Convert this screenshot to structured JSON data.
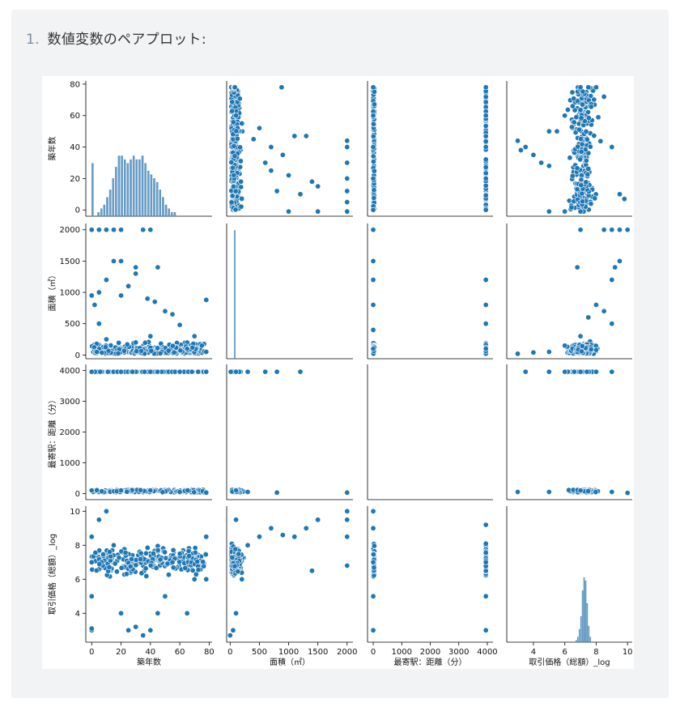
{
  "heading": {
    "number": "1.",
    "text": "数値変数のペアプロット:"
  },
  "chart_data": {
    "type": "scatter",
    "grid": false,
    "variables": [
      "築年数",
      "面積（㎡）",
      "最寄駅：距離（分）",
      "取引価格（総額）_log"
    ],
    "axis_labels": [
      "築年数",
      "面積（㎡）",
      "最寄駅：距離（分）",
      "取引価格（総額）_log"
    ],
    "ranges": [
      [
        -4,
        82
      ],
      [
        -60,
        2100
      ],
      [
        -200,
        4200
      ],
      [
        2.3,
        10.3
      ]
    ],
    "ticks": [
      [
        0,
        20,
        40,
        60,
        80
      ],
      [
        0,
        500,
        1000,
        1500,
        2000
      ],
      [
        0,
        1000,
        2000,
        3000,
        4000
      ],
      [
        4,
        6,
        8,
        10
      ]
    ],
    "tick_labels": [
      [
        "0",
        "20",
        "40",
        "60",
        "80"
      ],
      [
        "0",
        "500",
        "1000",
        "1500",
        "2000"
      ],
      [
        "0",
        "1000",
        "2000",
        "3000",
        "4000"
      ],
      [
        "4",
        "6",
        "8",
        "10"
      ]
    ],
    "color": "#1f77b4",
    "histograms": {
      "築年数": {
        "bins_x": [
          0,
          2,
          4,
          6,
          8,
          10,
          12,
          14,
          16,
          18,
          20,
          22,
          24,
          26,
          28,
          30,
          32,
          34,
          36,
          38,
          40,
          42,
          44,
          46,
          48,
          50,
          52,
          54,
          56
        ],
        "counts": [
          14,
          0,
          1,
          2,
          3,
          5,
          7,
          10,
          13,
          16,
          16,
          15,
          14,
          15,
          16,
          15,
          15,
          16,
          14,
          12,
          11,
          10,
          9,
          7,
          5,
          3,
          2,
          1,
          1
        ]
      },
      "面積（㎡）": {
        "bins_x": [
          70,
          90
        ],
        "counts": [
          2000,
          0
        ]
      },
      "取引価格（総額）_log": {
        "bins_x": [
          6.7,
          6.8,
          6.9,
          7.0,
          7.1,
          7.2,
          7.3,
          7.4,
          7.5,
          7.6
        ],
        "counts": [
          3,
          8,
          20,
          40,
          80,
          100,
          95,
          60,
          25,
          8
        ]
      }
    },
    "scatter_points": {
      "築年数_vs_面積": [
        [
          0,
          2000
        ],
        [
          5,
          2000
        ],
        [
          10,
          2000
        ],
        [
          15,
          2000
        ],
        [
          20,
          2000
        ],
        [
          35,
          2000
        ],
        [
          40,
          2000
        ],
        [
          20,
          1500
        ],
        [
          15,
          1500
        ],
        [
          30,
          1400
        ],
        [
          45,
          1400
        ],
        [
          30,
          1300
        ],
        [
          10,
          1200
        ],
        [
          5,
          1000
        ],
        [
          25,
          1100
        ],
        [
          20,
          950
        ],
        [
          38,
          900
        ],
        [
          43,
          850
        ],
        [
          78,
          880
        ],
        [
          50,
          700
        ],
        [
          55,
          650
        ],
        [
          60,
          480
        ],
        [
          70,
          300
        ],
        [
          75,
          150
        ],
        [
          78,
          50
        ],
        [
          40,
          300
        ],
        [
          30,
          200
        ],
        [
          10,
          250
        ],
        [
          65,
          100
        ],
        [
          5,
          500
        ],
        [
          2,
          800
        ],
        [
          0,
          950
        ]
      ],
      "面積_vs_築年数": [
        [
          20,
          78
        ],
        [
          60,
          78
        ],
        [
          70,
          78
        ],
        [
          80,
          78
        ],
        [
          880,
          78
        ],
        [
          100,
          60
        ],
        [
          200,
          55
        ],
        [
          400,
          45
        ],
        [
          500,
          52
        ],
        [
          700,
          40
        ],
        [
          900,
          35
        ],
        [
          1100,
          47
        ],
        [
          1300,
          47
        ],
        [
          1400,
          18
        ],
        [
          1500,
          15
        ],
        [
          1200,
          10
        ],
        [
          1000,
          22
        ],
        [
          800,
          12
        ],
        [
          2000,
          44
        ],
        [
          2000,
          40
        ],
        [
          2000,
          30
        ],
        [
          2000,
          20
        ],
        [
          2000,
          12
        ],
        [
          2000,
          5
        ],
        [
          2000,
          -1
        ],
        [
          1000,
          -1
        ],
        [
          1500,
          -1
        ],
        [
          700,
          25
        ],
        [
          600,
          30
        ]
      ],
      "距離_vs_築年数": [
        [
          0,
          78
        ],
        [
          0,
          60
        ],
        [
          0,
          40
        ],
        [
          0,
          20
        ],
        [
          0,
          0
        ],
        [
          3950,
          78
        ],
        [
          3950,
          60
        ],
        [
          3950,
          40
        ],
        [
          3950,
          20
        ],
        [
          3950,
          0
        ]
      ],
      "価格_vs_築年数": [
        [
          3,
          44
        ],
        [
          3.2,
          38
        ],
        [
          3.5,
          40
        ],
        [
          4,
          35
        ],
        [
          4.5,
          30
        ],
        [
          5,
          28
        ],
        [
          5,
          50
        ],
        [
          5.5,
          50
        ],
        [
          6,
          60
        ],
        [
          6.5,
          66
        ],
        [
          7,
          78
        ],
        [
          7.5,
          78
        ],
        [
          8,
          78
        ],
        [
          8.5,
          72
        ],
        [
          9,
          40
        ],
        [
          9.5,
          10
        ],
        [
          9.8,
          7
        ],
        [
          7.2,
          -1
        ],
        [
          5,
          -1
        ],
        [
          6,
          -1
        ],
        [
          7,
          -1
        ]
      ],
      "距離_vs_面積": [
        [
          0,
          2000
        ],
        [
          0,
          1500
        ],
        [
          0,
          1200
        ],
        [
          0,
          800
        ],
        [
          0,
          400
        ],
        [
          0,
          100
        ],
        [
          3950,
          1200
        ],
        [
          3950,
          800
        ],
        [
          3950,
          500
        ],
        [
          3950,
          100
        ]
      ],
      "価格_vs_面積": [
        [
          7,
          2000
        ],
        [
          8.5,
          2000
        ],
        [
          9,
          2000
        ],
        [
          9.5,
          2000
        ],
        [
          10,
          2000
        ],
        [
          9.5,
          1500
        ],
        [
          9.2,
          1400
        ],
        [
          6.8,
          1400
        ],
        [
          9,
          1200
        ],
        [
          8,
          800
        ],
        [
          7.5,
          600
        ],
        [
          8.5,
          700
        ],
        [
          9,
          500
        ],
        [
          7,
          300
        ],
        [
          6,
          150
        ],
        [
          5,
          50
        ],
        [
          3,
          20
        ],
        [
          4,
          40
        ]
      ],
      "築年数_vs_距離": [
        [
          0,
          3960
        ],
        [
          20,
          3960
        ],
        [
          40,
          3960
        ],
        [
          60,
          3960
        ],
        [
          78,
          3960
        ],
        [
          0,
          100
        ],
        [
          20,
          100
        ],
        [
          40,
          100
        ],
        [
          60,
          50
        ],
        [
          78,
          30
        ]
      ],
      "面積_vs_距離": [
        [
          10,
          3960
        ],
        [
          100,
          3960
        ],
        [
          300,
          3960
        ],
        [
          600,
          3960
        ],
        [
          800,
          3960
        ],
        [
          1200,
          3960
        ],
        [
          100,
          100
        ],
        [
          300,
          50
        ],
        [
          800,
          30
        ],
        [
          2000,
          30
        ]
      ],
      "価格_vs_距離": [
        [
          3.5,
          3960
        ],
        [
          5,
          3960
        ],
        [
          6,
          3960
        ],
        [
          7,
          3960
        ],
        [
          8,
          3960
        ],
        [
          9,
          3960
        ],
        [
          3,
          50
        ],
        [
          5,
          50
        ],
        [
          7,
          100
        ],
        [
          9,
          50
        ],
        [
          10,
          20
        ]
      ],
      "築年数_vs_価格": [
        [
          0,
          3
        ],
        [
          0,
          3.1
        ],
        [
          0,
          5
        ],
        [
          0,
          7
        ],
        [
          0,
          8.5
        ],
        [
          5,
          9.5
        ],
        [
          10,
          10
        ],
        [
          15,
          8
        ],
        [
          20,
          4
        ],
        [
          25,
          3
        ],
        [
          30,
          3.2
        ],
        [
          35,
          2.7
        ],
        [
          40,
          3
        ],
        [
          45,
          4
        ],
        [
          50,
          5
        ],
        [
          55,
          7
        ],
        [
          60,
          7.5
        ],
        [
          65,
          4
        ],
        [
          70,
          6
        ],
        [
          78,
          8.5
        ],
        [
          78,
          6
        ]
      ],
      "面積_vs_価格": [
        [
          0,
          2.7
        ],
        [
          50,
          3
        ],
        [
          100,
          4
        ],
        [
          200,
          6
        ],
        [
          300,
          8
        ],
        [
          500,
          8.5
        ],
        [
          700,
          9
        ],
        [
          900,
          8.6
        ],
        [
          1100,
          8.5
        ],
        [
          1300,
          9
        ],
        [
          1400,
          6.5
        ],
        [
          1500,
          9.5
        ],
        [
          2000,
          10
        ],
        [
          2000,
          9.5
        ],
        [
          2000,
          8.5
        ],
        [
          2000,
          6.8
        ],
        [
          100,
          9.5
        ]
      ],
      "距離_vs_価格": [
        [
          0,
          10
        ],
        [
          0,
          9
        ],
        [
          0,
          7
        ],
        [
          0,
          5
        ],
        [
          0,
          3
        ],
        [
          3950,
          9.2
        ],
        [
          3950,
          7
        ],
        [
          3950,
          5
        ],
        [
          3950,
          3
        ]
      ]
    }
  }
}
